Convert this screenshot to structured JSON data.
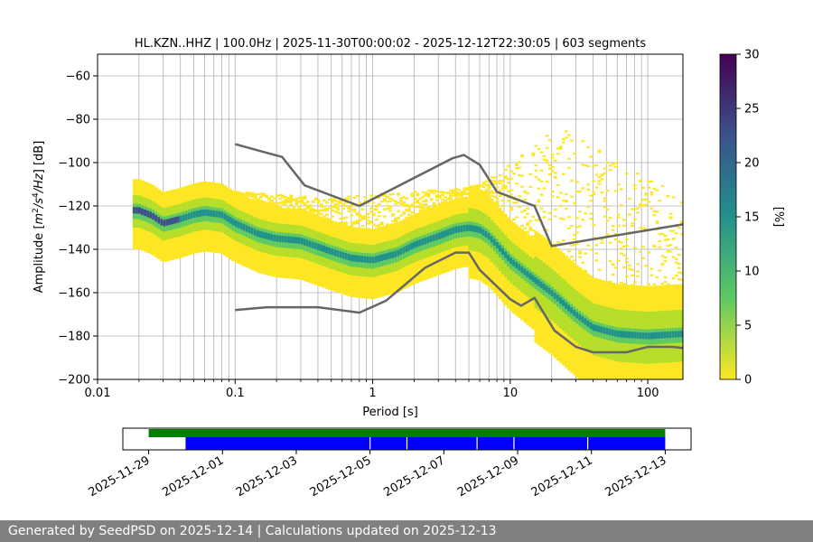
{
  "chart_data": {
    "type": "heatmap",
    "title": "HL.KZN..HHZ | 100.0Hz | 2025-11-30T00:00:02 - 2025-12-12T22:30:05 | 603 segments",
    "xlabel": "Period [s]",
    "ylabel_parts": [
      "Amplitude [",
      "m",
      "2",
      "/s",
      "4",
      "/Hz",
      "] [dB]"
    ],
    "x_scale": "log",
    "xlim": [
      0.01,
      180
    ],
    "ylim": [
      -200,
      -50
    ],
    "x_ticks": [
      {
        "v": 0.01,
        "label": "0.01"
      },
      {
        "v": 0.1,
        "label": "0.1"
      },
      {
        "v": 1,
        "label": "1"
      },
      {
        "v": 10,
        "label": "10"
      },
      {
        "v": 100,
        "label": "100"
      }
    ],
    "y_ticks": [
      {
        "v": -60,
        "label": "−60"
      },
      {
        "v": -80,
        "label": "−80"
      },
      {
        "v": -100,
        "label": "−100"
      },
      {
        "v": -120,
        "label": "−120"
      },
      {
        "v": -140,
        "label": "−140"
      },
      {
        "v": -160,
        "label": "−160"
      },
      {
        "v": -180,
        "label": "−180"
      },
      {
        "v": -200,
        "label": "−200"
      }
    ],
    "grid": "vertical-log",
    "colorbar": {
      "label": "[%]",
      "range": [
        0,
        30
      ],
      "ticks": [
        {
          "v": 0,
          "label": "0"
        },
        {
          "v": 5,
          "label": "5"
        },
        {
          "v": 10,
          "label": "10"
        },
        {
          "v": 15,
          "label": "15"
        },
        {
          "v": 20,
          "label": "20"
        },
        {
          "v": 25,
          "label": "25"
        },
        {
          "v": 30,
          "label": "30"
        }
      ],
      "colormap": [
        "#fde725",
        "#5ec962",
        "#21918c",
        "#3b528b",
        "#440154"
      ]
    },
    "mode_curve": {
      "period": [
        0.02,
        0.025,
        0.03,
        0.04,
        0.05,
        0.06,
        0.08,
        0.1,
        0.15,
        0.2,
        0.3,
        0.5,
        0.7,
        1,
        1.5,
        2,
        3,
        4,
        5,
        6,
        7,
        8,
        10,
        15,
        20,
        30,
        40,
        60,
        100,
        180
      ],
      "db": [
        -122,
        -124.5,
        -128,
        -126,
        -124,
        -123,
        -124,
        -128,
        -133,
        -135,
        -136,
        -141,
        -144,
        -145,
        -142,
        -138,
        -134,
        -131,
        -130,
        -131,
        -134,
        -138,
        -145,
        -154,
        -160,
        -170,
        -176,
        -179,
        -180,
        -179
      ]
    },
    "upper_noise_model": {
      "period": [
        0.1,
        0.22,
        0.32,
        0.8,
        3.8,
        4.6,
        6,
        8,
        15,
        20,
        180
      ],
      "db": [
        -91.5,
        -97.4,
        -110.5,
        -120,
        -98,
        -96.5,
        -101,
        -113.5,
        -120,
        -138.5,
        -128.5
      ]
    },
    "lower_noise_model": {
      "period": [
        0.1,
        0.17,
        0.4,
        0.8,
        1.25,
        2.4,
        4,
        5,
        6,
        10,
        12,
        15,
        21,
        30,
        40,
        70,
        100,
        150,
        180
      ],
      "db": [
        -168,
        -166.7,
        -166.7,
        -169.2,
        -163.7,
        -148.5,
        -141.5,
        -141.5,
        -149.5,
        -163,
        -166,
        -162.4,
        -177.5,
        -185,
        -187.5,
        -187.5,
        -185,
        -185,
        -185.5
      ]
    },
    "band_halfwidth_db": [
      6,
      10,
      14,
      18
    ],
    "sparse_envelope_top": {
      "period": [
        0.04,
        0.1,
        0.5,
        1,
        3,
        6,
        10,
        20,
        30,
        60,
        180
      ],
      "db": [
        -117,
        -113,
        -116,
        -114,
        -112,
        -110,
        -100,
        -85,
        -85,
        -100,
        -112
      ]
    },
    "timeline": {
      "date_labels": [
        "2025-11-29",
        "2025-12-01",
        "2025-12-03",
        "2025-12-05",
        "2025-12-07",
        "2025-12-09",
        "2025-12-11",
        "2025-12-13"
      ],
      "date_offsets_days": [
        0,
        2,
        4,
        6,
        8,
        10,
        12,
        14
      ],
      "range_days": [
        -0.7,
        14.7
      ],
      "available": [
        {
          "start_day": 0,
          "end_day": 14.0
        }
      ],
      "processed": [
        {
          "start_day": 1.0,
          "end_day": 14.0
        }
      ],
      "gap_days": [
        6.0,
        7.0,
        8.9,
        9.9,
        11.9
      ],
      "available_color": "#008000",
      "processed_color": "#0000ff"
    }
  },
  "footer_text": "Generated by SeedPSD on 2025-12-14 | Calculations updated on 2025-12-13"
}
